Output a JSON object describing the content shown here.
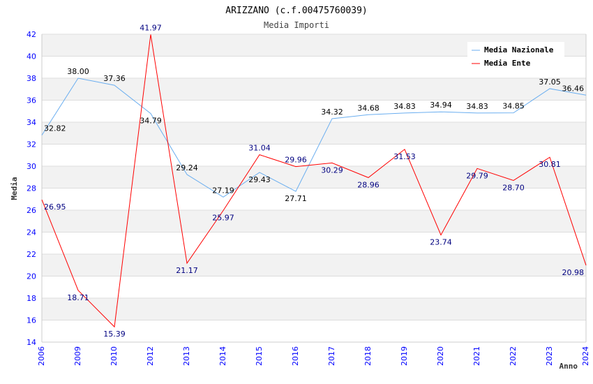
{
  "chart_data": {
    "type": "line",
    "title": "ARIZZANO (c.f.00475760039)",
    "subtitle": "Media Importi",
    "xlabel": "Anno",
    "ylabel": "Media",
    "ylim": [
      14,
      42
    ],
    "yticks": [
      14,
      16,
      18,
      20,
      22,
      24,
      26,
      28,
      30,
      32,
      34,
      36,
      38,
      40,
      42
    ],
    "categories": [
      "2006",
      "2009",
      "2010",
      "2012",
      "2013",
      "2014",
      "2015",
      "2016",
      "2017",
      "2018",
      "2019",
      "2020",
      "2021",
      "2022",
      "2023",
      "2024"
    ],
    "legend_position": "top-right",
    "grid": true,
    "series": [
      {
        "name": "Media Nazionale",
        "color": "#6aaef0",
        "label_color": "#000000",
        "values": [
          32.82,
          38.0,
          37.36,
          34.79,
          29.24,
          27.19,
          29.43,
          27.71,
          34.32,
          34.68,
          34.83,
          34.94,
          34.83,
          34.85,
          37.05,
          36.46
        ]
      },
      {
        "name": "Media Ente",
        "color": "#ff0000",
        "label_color": "#000080",
        "values": [
          26.95,
          18.71,
          15.39,
          41.97,
          21.17,
          25.97,
          31.04,
          29.96,
          30.29,
          28.96,
          31.53,
          23.74,
          29.79,
          28.7,
          30.81,
          20.98
        ]
      }
    ]
  }
}
